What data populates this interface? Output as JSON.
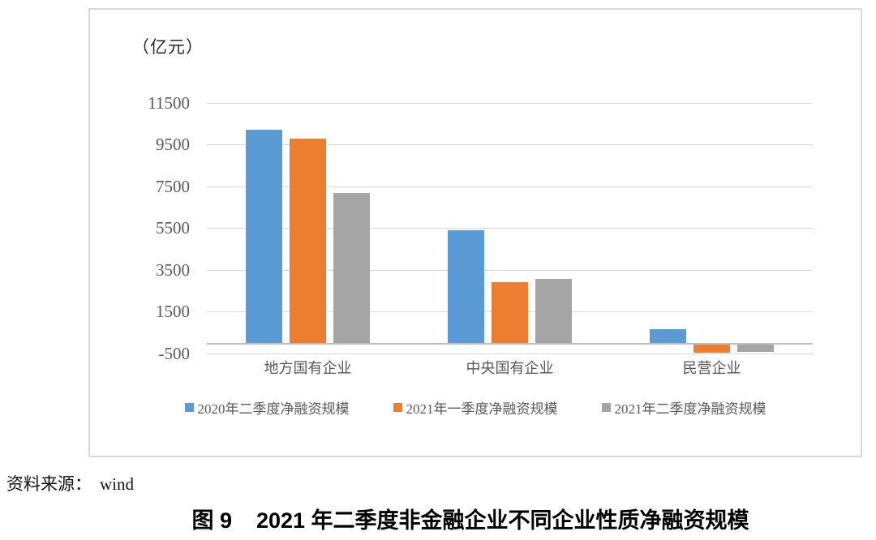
{
  "chart_data": {
    "type": "bar",
    "title": "图 9  2021 年二季度非金融企业不同企业性质净融资规模",
    "ylabel": "（亿元）",
    "xlabel": "",
    "categories": [
      "地方国有企业",
      "中央国有企业",
      "民营企业"
    ],
    "series": [
      {
        "name": "2020年二季度净融资规模",
        "color": "#5B9BD5",
        "values": [
          10200,
          5400,
          650
        ]
      },
      {
        "name": "2021年一季度净融资规模",
        "color": "#ED7D31",
        "values": [
          9800,
          2900,
          -400
        ]
      },
      {
        "name": "2021年二季度净融资规模",
        "color": "#A5A5A5",
        "values": [
          7200,
          3050,
          -350
        ]
      }
    ],
    "y_ticks": [
      11500,
      9500,
      7500,
      5500,
      3500,
      1500,
      -500
    ],
    "ylim": [
      -900,
      12600
    ],
    "grid": true,
    "legend_position": "bottom",
    "gridline_color": "#D9D9D9",
    "axis_color": "#BFBFBF",
    "label_color": "#595959"
  },
  "footer": {
    "source_label": "资料来源：",
    "source_value": "wind",
    "caption_prefix": "图 9",
    "caption_text": "2021 年二季度非金融企业不同企业性质净融资规模"
  }
}
